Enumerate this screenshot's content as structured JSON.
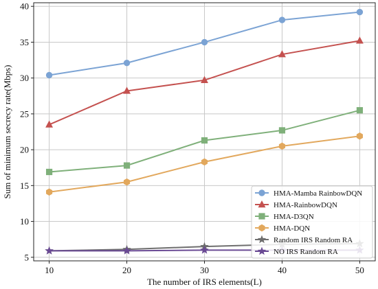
{
  "chart_data": {
    "type": "line",
    "xlabel": "The number of IRS elements(L)",
    "ylabel": "Sum of minimum secrecy rate(Mbps)",
    "x": [
      10,
      20,
      30,
      40,
      50
    ],
    "xlim": [
      8,
      52
    ],
    "ylim": [
      4.5,
      40.5
    ],
    "xticks": [
      "10",
      "20",
      "30",
      "40",
      "50"
    ],
    "yticks": [
      "5",
      "10",
      "15",
      "20",
      "25",
      "30",
      "35",
      "40"
    ],
    "grid": true,
    "legend_position": "lower-right",
    "series": [
      {
        "name": "HMA-Mamba RainbowDQN",
        "values": [
          30.4,
          32.1,
          35.0,
          38.1,
          39.2
        ],
        "color": "#7ba3d4",
        "marker": "circle"
      },
      {
        "name": "HMA-RainbowDQN",
        "values": [
          23.5,
          28.2,
          29.7,
          33.3,
          35.2
        ],
        "color": "#c4514f",
        "marker": "triangle"
      },
      {
        "name": "HMA-D3QN",
        "values": [
          16.9,
          17.8,
          21.3,
          22.7,
          25.5
        ],
        "color": "#7fb07a",
        "marker": "square"
      },
      {
        "name": "HMA-DQN",
        "values": [
          14.1,
          15.5,
          18.3,
          20.5,
          21.9
        ],
        "color": "#e2a85d",
        "marker": "hexagon"
      },
      {
        "name": "Random IRS Random RA",
        "values": [
          5.9,
          6.1,
          6.5,
          6.8,
          6.9
        ],
        "color": "#6e6e6e",
        "marker": "star"
      },
      {
        "name": "NO IRS Random RA",
        "values": [
          5.9,
          5.9,
          6.0,
          6.0,
          6.0
        ],
        "color": "#6a4a94",
        "marker": "star"
      }
    ]
  }
}
